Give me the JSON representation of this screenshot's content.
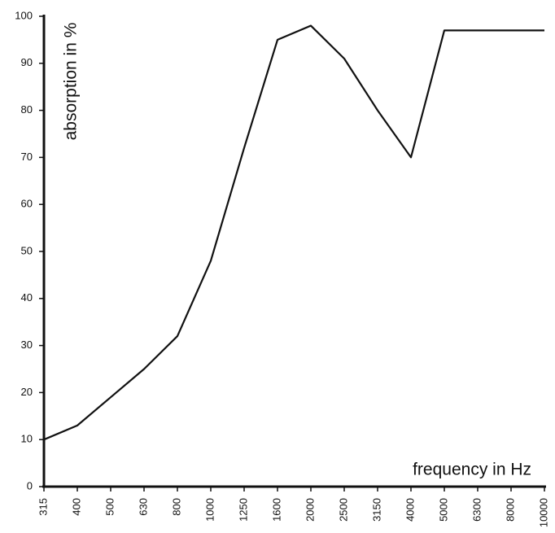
{
  "chart_data": {
    "type": "line",
    "x_label": "frequency in Hz",
    "y_label": "absorption in %",
    "categories": [
      "315",
      "400",
      "500",
      "630",
      "800",
      "1000",
      "1250",
      "1600",
      "2000",
      "2500",
      "3150",
      "4000",
      "5000",
      "6300",
      "8000",
      "10000"
    ],
    "values": [
      10,
      13,
      19,
      25,
      32,
      48,
      72,
      95,
      98,
      91,
      80,
      70,
      97,
      97,
      97,
      97
    ],
    "color": "#111111",
    "ylim": [
      0,
      100
    ],
    "yticks": [
      0,
      10,
      20,
      30,
      40,
      50,
      60,
      70,
      80,
      90,
      100
    ],
    "grid": false
  }
}
